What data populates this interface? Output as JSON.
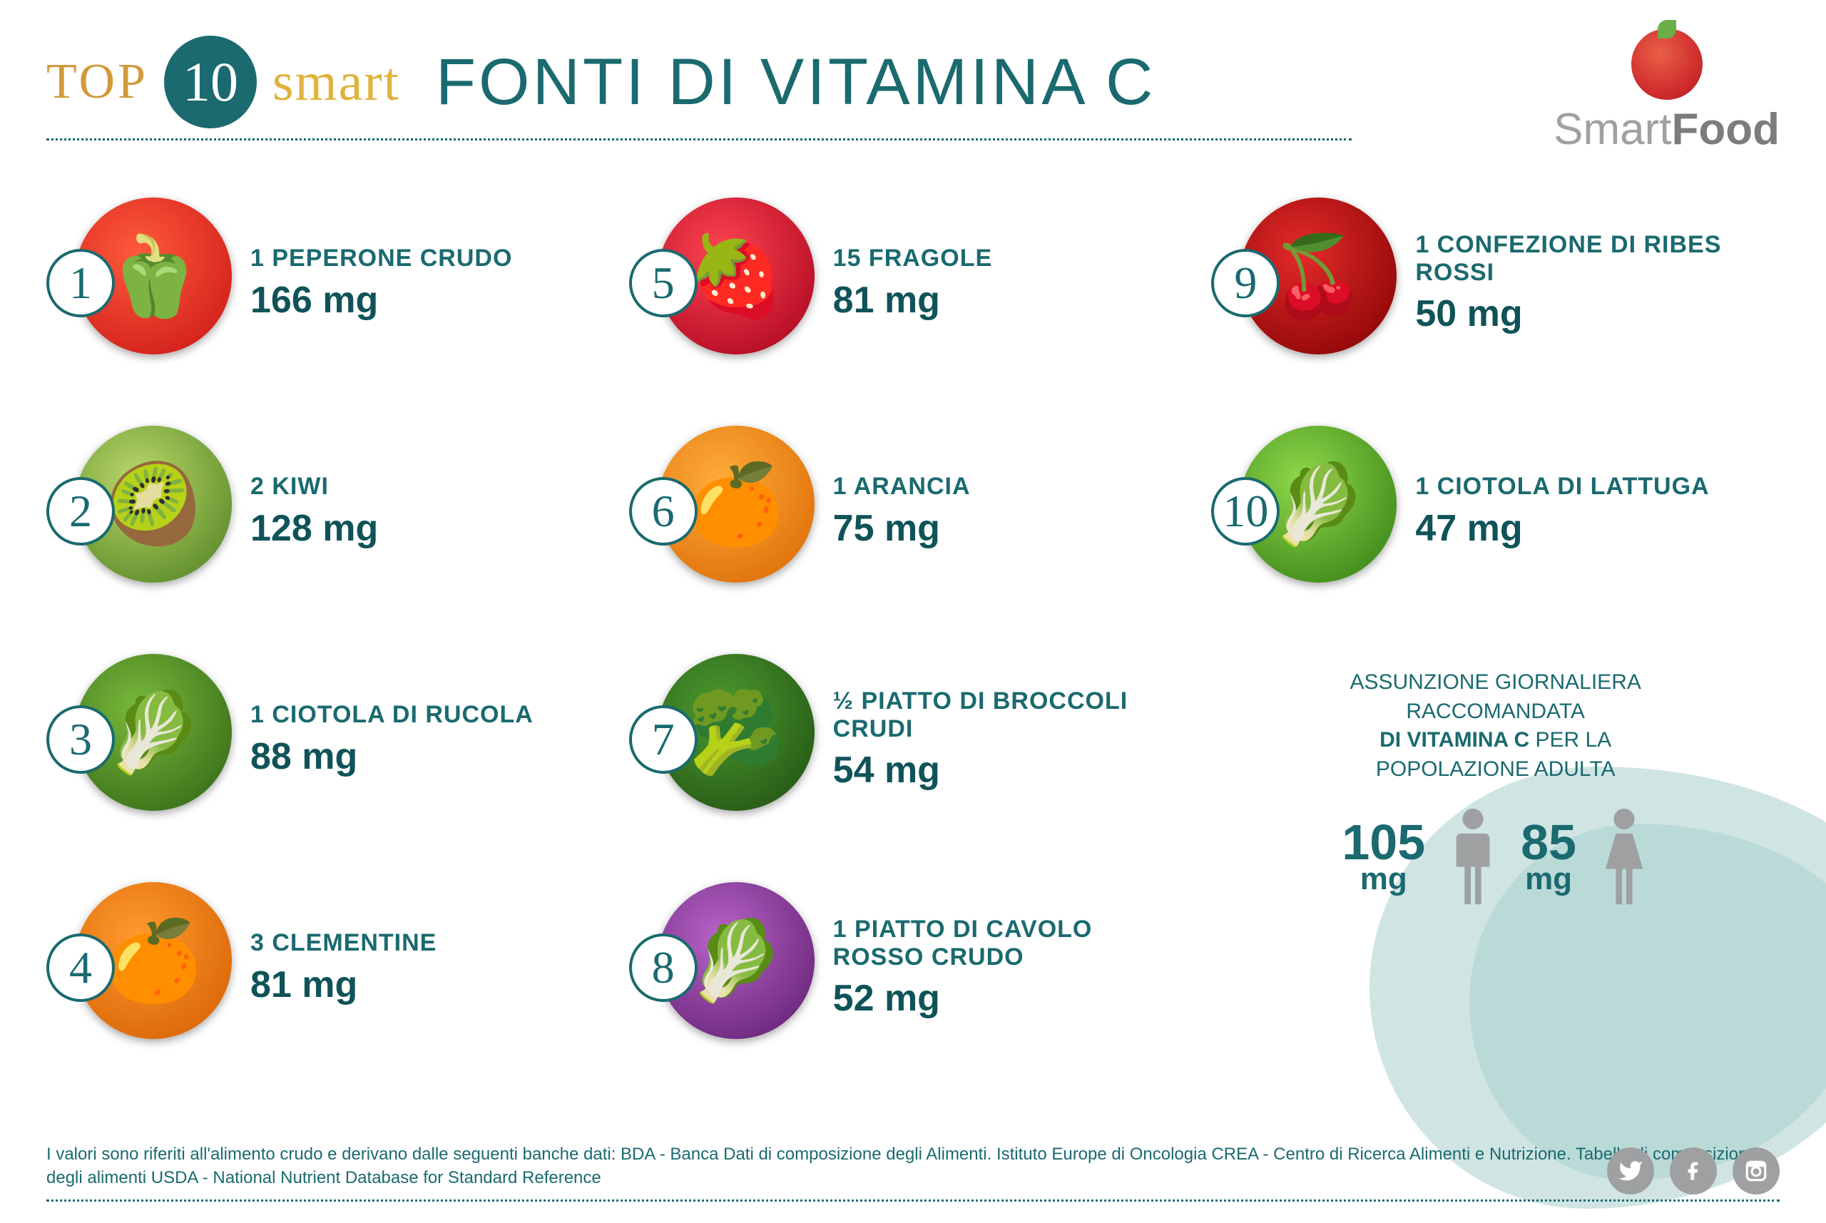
{
  "colors": {
    "teal": "#1a6a6f",
    "teal_dark": "#0f5358",
    "gold": "#d39a3b",
    "mustard": "#e0b23e",
    "grey": "#9fa0a1",
    "grey_dark": "#7b7c7d",
    "blob_a": "rgba(120,180,175,0.35)",
    "blob_b": "rgba(160,205,200,0.45)"
  },
  "header": {
    "top": "TOP",
    "ten": "10",
    "smart": "smart",
    "title": "FONTI DI VITAMINA C"
  },
  "logo": {
    "line1": "Smart",
    "line2": "Food"
  },
  "items": [
    {
      "n": "1",
      "label": "1 PEPERONE CRUDO",
      "value": "166 mg",
      "emoji": "🫑",
      "bg": "radial-gradient(circle at 40% 35%,#ff5a3c,#c81414)"
    },
    {
      "n": "2",
      "label": "2 KIWI",
      "value": "128 mg",
      "emoji": "🥝",
      "bg": "radial-gradient(circle at 40% 35%,#bcd96a,#4a7d1e)"
    },
    {
      "n": "3",
      "label": "1 CIOTOLA DI RUCOLA",
      "value": "88 mg",
      "emoji": "🥬",
      "bg": "radial-gradient(circle at 40% 35%,#79b93c,#2e6112)"
    },
    {
      "n": "4",
      "label": "3 CLEMENTINE",
      "value": "81 mg",
      "emoji": "🍊",
      "bg": "radial-gradient(circle at 40% 35%,#ff9a2e,#d25c00)"
    },
    {
      "n": "5",
      "label": "15 FRAGOLE",
      "value": "81 mg",
      "emoji": "🍓",
      "bg": "radial-gradient(circle at 40% 35%,#ff4451,#a3001b)"
    },
    {
      "n": "6",
      "label": "1 ARANCIA",
      "value": "75 mg",
      "emoji": "🍊",
      "bg": "radial-gradient(circle at 40% 35%,#ffac3a,#d86500)"
    },
    {
      "n": "7",
      "label": "½ PIATTO DI BROCCOLI CRUDI",
      "value": "54 mg",
      "emoji": "🥦",
      "bg": "radial-gradient(circle at 40% 35%,#4d9a30,#1e4d10)"
    },
    {
      "n": "8",
      "label": "1 PIATTO DI CAVOLO ROSSO CRUDO",
      "value": "52 mg",
      "emoji": "🥬",
      "bg": "radial-gradient(circle at 40% 35%,#b864c8,#5a1a6b)"
    },
    {
      "n": "9",
      "label": "1 CONFEZIONE DI RIBES ROSSI",
      "value": "50 mg",
      "emoji": "🍒",
      "bg": "radial-gradient(circle at 40% 35%,#e42a2a,#7e0000)"
    },
    {
      "n": "10",
      "label": "1 CIOTOLA DI LATTUGA",
      "value": "47 mg",
      "emoji": "🥬",
      "bg": "radial-gradient(circle at 40% 35%,#8fd94a,#2f7a12)"
    }
  ],
  "reco": {
    "line1": "ASSUNZIONE GIORNALIERA",
    "line2": "RACCOMANDATA",
    "line3a": "DI VITAMINA C",
    "line3b": " PER LA",
    "line4": "POPOLAZIONE ADULTA",
    "male": "105",
    "female": "85",
    "unit": "mg"
  },
  "footer": {
    "text": "I valori sono riferiti all'alimento crudo e derivano dalle seguenti banche dati: BDA - Banca Dati di composizione degli Alimenti. Istituto Europe di Oncologia CREA - Centro di Ricerca Alimenti e Nutrizione. Tabelle di composizione degli alimenti USDA - National Nutrient Database for Standard Reference"
  },
  "layout": {
    "order": [
      0,
      4,
      8,
      1,
      5,
      9,
      2,
      6,
      "reco",
      3,
      7,
      "reco2"
    ]
  }
}
